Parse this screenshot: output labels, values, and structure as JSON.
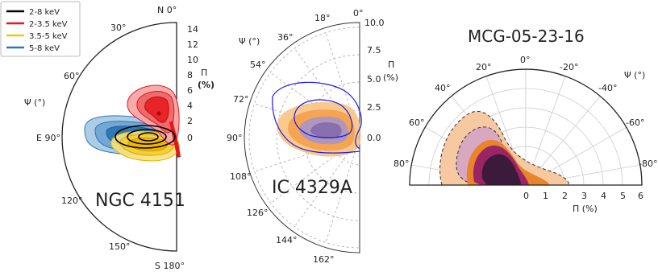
{
  "legend": {
    "items": [
      {
        "label": "2-8 keV",
        "color": "#000000"
      },
      {
        "label": "2-3.5 keV",
        "color": "#e8141e"
      },
      {
        "label": "3.5-5 keV",
        "color": "#f5c518"
      },
      {
        "label": "5-8 keV",
        "color": "#2f78b4"
      }
    ]
  },
  "chart_data": [
    {
      "type": "polar-contour",
      "name": "NGC 4151",
      "title": "NGC 4151",
      "angle_label": "Ψ (°)",
      "radial_label": "Π",
      "radial_unit": "(%)",
      "angle_ticks": [
        "N 0°",
        "30°",
        "60°",
        "E 90°",
        "120°",
        "150°",
        "S 180°"
      ],
      "radial_ticks": [
        "14",
        "12",
        "10",
        "8",
        "6",
        "4",
        "2",
        "0"
      ],
      "rmax": 15,
      "contours": [
        {
          "band": "5-8 keV",
          "color": "#2f78b4",
          "center_psi": 90,
          "center_pi": 6,
          "levels": 3
        },
        {
          "band": "3.5-5 keV",
          "color": "#f5c518",
          "center_psi": 80,
          "center_pi": 4,
          "levels": 3
        },
        {
          "band": "2-3.5 keV",
          "color": "#e8141e",
          "center_psi": 20,
          "center_pi": 3,
          "levels": 3
        },
        {
          "band": "2-8 keV",
          "color": "#000000",
          "center_psi": 90,
          "center_pi": 0.3,
          "levels": 3
        }
      ]
    },
    {
      "type": "polar-contour",
      "name": "IC 4329A",
      "title": "IC 4329A",
      "angle_label": "Ψ (°)",
      "radial_label": "Π",
      "radial_unit": "(%)",
      "angle_ticks": [
        "0°",
        "18°",
        "36°",
        "54°",
        "72°",
        "90°",
        "108°",
        "126°",
        "144°",
        "162°"
      ],
      "radial_ticks": [
        "10.0",
        "7.5",
        "5.0",
        "2.5",
        "0.0"
      ],
      "rmax": 10,
      "contours": [
        {
          "color": "#f5a623",
          "center_psi": 85,
          "center_pi": 1.5,
          "levels": 3
        },
        {
          "color": "#8a7bb5",
          "center_psi": 85,
          "center_pi": 1.0,
          "levels": 2
        },
        {
          "color": "#1a1ae6",
          "center_psi": 80,
          "center_pi": 2.0,
          "levels": 2
        }
      ]
    },
    {
      "type": "polar-contour",
      "name": "MCG-05-23-16",
      "title": "MCG-05-23-16",
      "angle_label": "Ψ (°)",
      "radial_label": "Π (%)",
      "angle_ticks": [
        "0°",
        "20°",
        "40°",
        "60°",
        "80°",
        "-20°",
        "-40°",
        "-60°",
        "-80°"
      ],
      "radial_ticks": [
        "0",
        "1",
        "2",
        "3",
        "4",
        "5",
        "6"
      ],
      "rmax": 6,
      "contours": [
        {
          "color": "#f6c9a0",
          "center_psi": 65,
          "center_pi": 2.5,
          "levels": 1,
          "dashed": true
        },
        {
          "color": "#c98aa8",
          "center_psi": 60,
          "center_pi": 2.0,
          "levels": 1,
          "dashed": true
        },
        {
          "color": "#e8842a",
          "center_psi": 60,
          "center_pi": 1.0,
          "levels": 1
        },
        {
          "color": "#8b1a5a",
          "center_psi": 60,
          "center_pi": 1.0,
          "levels": 1
        },
        {
          "color": "#3b1a3b",
          "center_psi": 60,
          "center_pi": 1.0,
          "levels": 1
        }
      ]
    }
  ]
}
